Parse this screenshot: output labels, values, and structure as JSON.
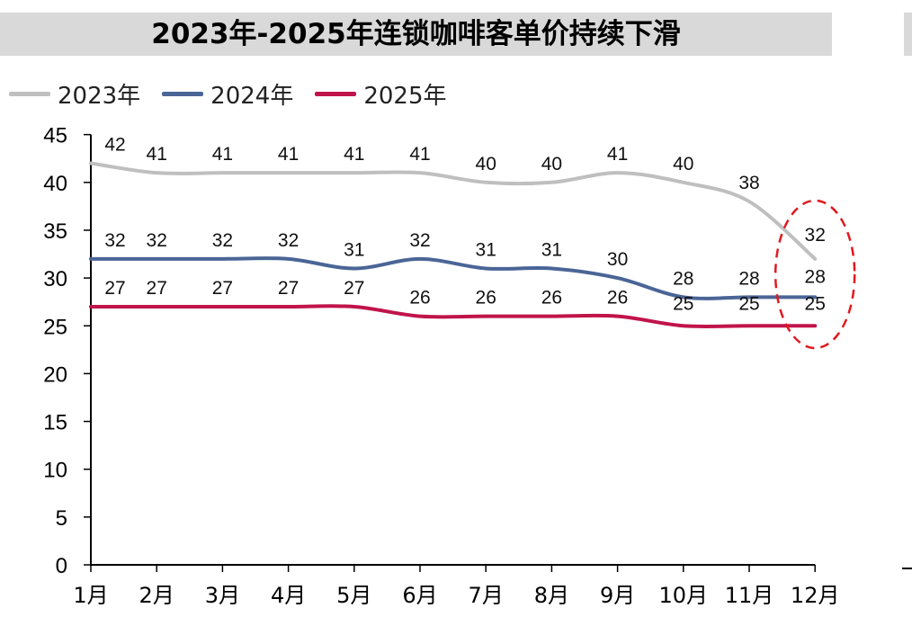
{
  "chart_data": {
    "type": "line",
    "title": "2023年-2025年连锁咖啡客单价持续下滑",
    "categories": [
      "1月",
      "2月",
      "3月",
      "4月",
      "5月",
      "6月",
      "7月",
      "8月",
      "9月",
      "10月",
      "11月",
      "12月"
    ],
    "series": [
      {
        "name": "2023年",
        "color": "#bfbfbf",
        "values": [
          42,
          41,
          41,
          41,
          41,
          41,
          40,
          40,
          41,
          40,
          38,
          32
        ],
        "labels": [
          "42",
          "41",
          "41",
          "41",
          "41",
          "41",
          "40",
          "40",
          "41",
          "40",
          "38",
          "32"
        ]
      },
      {
        "name": "2024年",
        "color": "#4a6596",
        "values": [
          32,
          32,
          32,
          32,
          31,
          32,
          31,
          31,
          30,
          28,
          28,
          28
        ],
        "labels": [
          "32",
          "32",
          "32",
          "32",
          "31",
          "32",
          "31",
          "31",
          "30",
          "28",
          "28",
          "28"
        ]
      },
      {
        "name": "2025年",
        "color": "#c0144a",
        "values": [
          27,
          27,
          27,
          27,
          27,
          26,
          26,
          26,
          26,
          25,
          25,
          25
        ],
        "labels": [
          "27",
          "27",
          "27",
          "27",
          "27",
          "26",
          "26",
          "26",
          "26",
          "25",
          "25",
          "25"
        ]
      }
    ],
    "ylim": [
      0,
      45
    ],
    "yticks": [
      "0",
      "5",
      "10",
      "15",
      "20",
      "25",
      "30",
      "35",
      "40",
      "45"
    ],
    "xlabel": "",
    "ylabel": "",
    "legend": "top-left",
    "annotation": "dashed red ellipse highlighting December values"
  },
  "colors": {
    "title_bg": "#d9d9d9",
    "highlight": "#e0191e"
  }
}
